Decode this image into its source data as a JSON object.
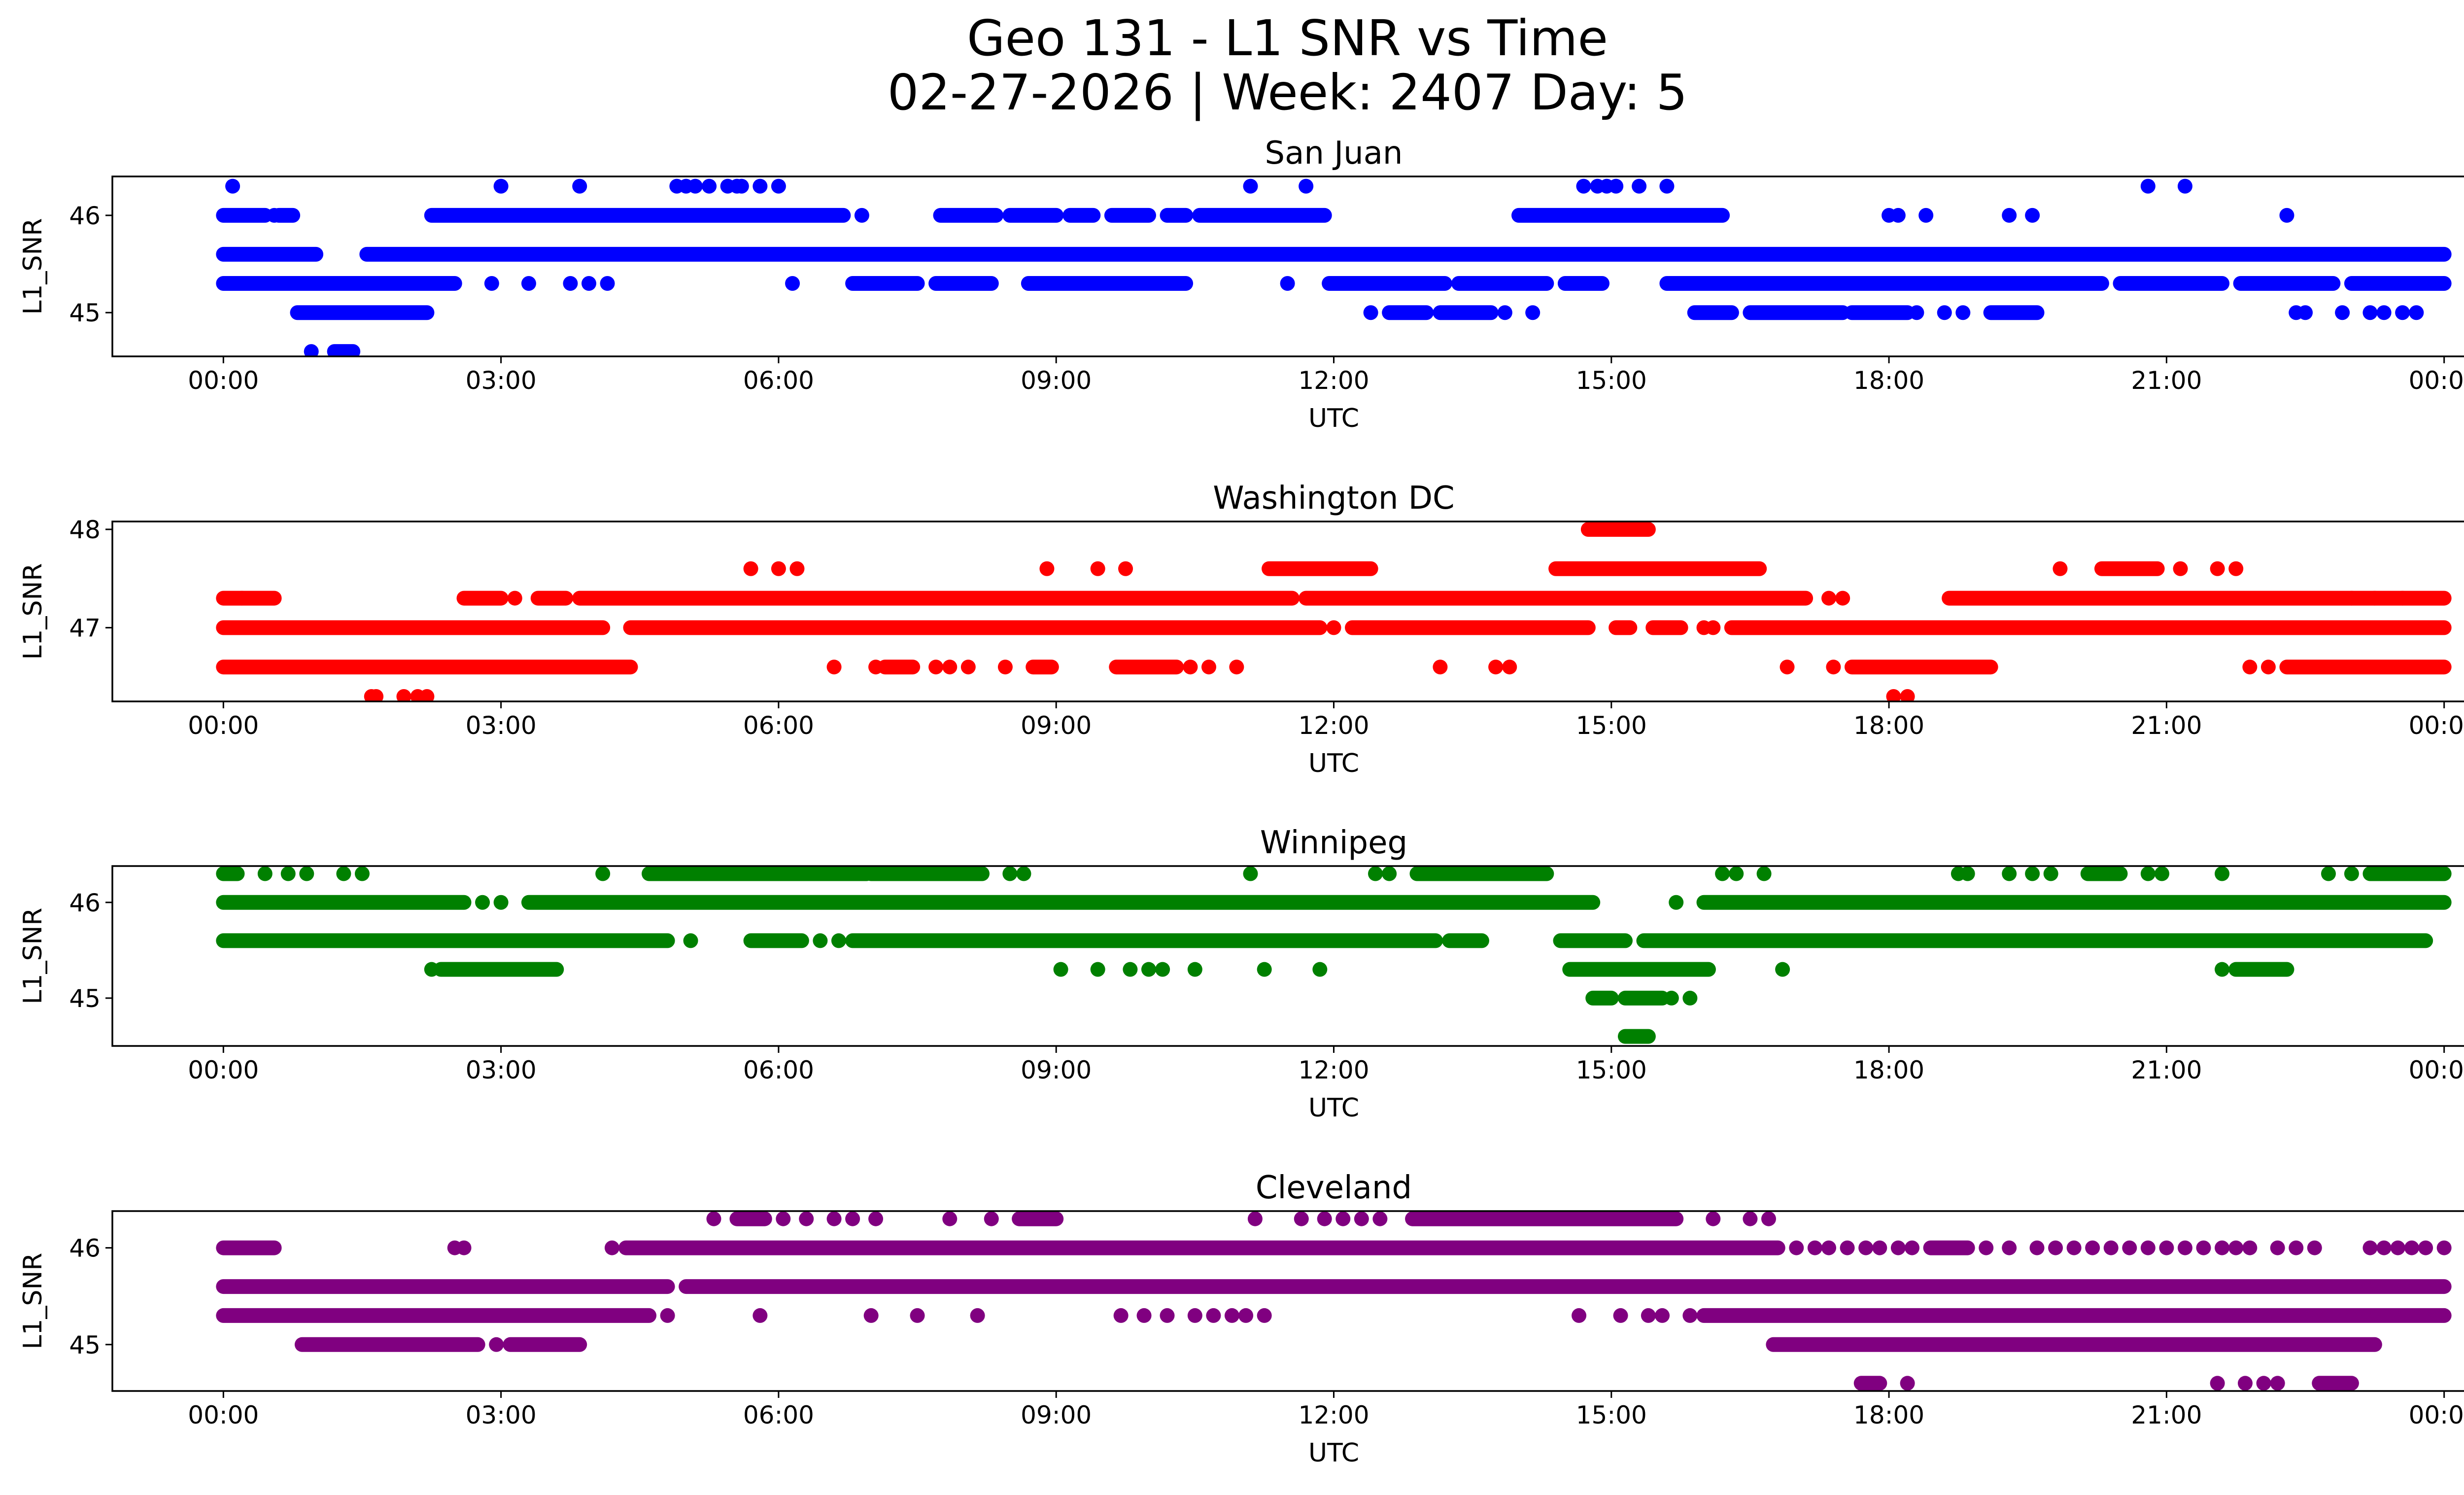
{
  "figure": {
    "title_line1": "Geo 131 - L1 SNR vs Time",
    "title_line2": "02-27-2026 | Week: 2407 Day: 5"
  },
  "chart_data": [
    {
      "type": "scatter",
      "title": "San Juan",
      "xlabel": "UTC",
      "ylabel": "L1_SNR",
      "color": "#0000ff",
      "x_unit": "hours UTC",
      "xlim": [
        -1.2,
        25.2
      ],
      "ylim": [
        44.55,
        46.4
      ],
      "yticks": [
        45,
        46
      ],
      "ytick_labels": [
        "45",
        "46"
      ],
      "xticks": [
        0,
        3,
        6,
        9,
        12,
        15,
        18,
        21,
        24
      ],
      "xtick_labels": [
        "00:00",
        "03:00",
        "06:00",
        "09:00",
        "12:00",
        "15:00",
        "18:00",
        "21:00",
        "00:00"
      ],
      "levels": [
        {
          "y": 46.3,
          "x": [
            0.1,
            3.0,
            3.85,
            4.9,
            5.0,
            5.1,
            5.25,
            5.45,
            5.55,
            5.6,
            5.8,
            6.0,
            11.1,
            11.7,
            14.7,
            14.85,
            14.95,
            15.05,
            15.3,
            15.6,
            20.8,
            21.2
          ]
        },
        {
          "y": 46.0,
          "segments": [
            [
              0,
              0.45
            ],
            [
              0.6,
              0.75
            ],
            [
              2.25,
              6.7
            ],
            [
              7.75,
              8.35
            ],
            [
              8.5,
              9.0
            ],
            [
              9.15,
              9.4
            ],
            [
              9.6,
              10.0
            ],
            [
              10.2,
              10.4
            ],
            [
              10.55,
              11.9
            ],
            [
              14.0,
              16.2
            ]
          ],
          "x": [
            0.55,
            6.9,
            18.0,
            18.1,
            18.4,
            19.3,
            19.55,
            22.3
          ]
        },
        {
          "y": 45.6,
          "segments": [
            [
              0,
              1.0
            ],
            [
              1.55,
              24.0
            ]
          ]
        },
        {
          "y": 45.3,
          "segments": [
            [
              0,
              2.5
            ],
            [
              6.8,
              7.5
            ],
            [
              7.7,
              8.3
            ],
            [
              8.7,
              10.4
            ],
            [
              11.95,
              13.2
            ],
            [
              13.35,
              14.3
            ],
            [
              14.5,
              14.9
            ],
            [
              15.6,
              20.3
            ],
            [
              20.5,
              21.6
            ],
            [
              21.8,
              22.8
            ],
            [
              23.0,
              24.0
            ]
          ],
          "x": [
            2.9,
            3.3,
            3.75,
            3.95,
            4.15,
            6.15,
            11.5
          ]
        },
        {
          "y": 45.0,
          "segments": [
            [
              0.8,
              2.2
            ],
            [
              12.6,
              13.0
            ],
            [
              13.15,
              13.7
            ],
            [
              15.9,
              16.3
            ],
            [
              16.5,
              17.5
            ],
            [
              17.6,
              18.2
            ],
            [
              19.1,
              19.6
            ]
          ],
          "x": [
            12.4,
            13.85,
            14.15,
            18.3,
            18.6,
            18.8,
            22.4,
            22.5,
            22.9,
            23.2,
            23.35,
            23.55,
            23.7
          ]
        },
        {
          "y": 44.6,
          "segments": [
            [
              1.2,
              1.4
            ]
          ],
          "x": [
            0.95
          ]
        }
      ]
    },
    {
      "type": "scatter",
      "title": "Washington DC",
      "xlabel": "UTC",
      "ylabel": "L1_SNR",
      "color": "#ff0000",
      "x_unit": "hours UTC",
      "xlim": [
        -1.2,
        25.2
      ],
      "ylim": [
        46.25,
        48.08
      ],
      "yticks": [
        47,
        48
      ],
      "ytick_labels": [
        "47",
        "48"
      ],
      "xticks": [
        0,
        3,
        6,
        9,
        12,
        15,
        18,
        21,
        24
      ],
      "xtick_labels": [
        "00:00",
        "03:00",
        "06:00",
        "09:00",
        "12:00",
        "15:00",
        "18:00",
        "21:00",
        "00:00"
      ],
      "levels": [
        {
          "y": 48.0,
          "segments": [
            [
              14.75,
              15.4
            ]
          ]
        },
        {
          "y": 47.6,
          "segments": [
            [
              11.3,
              12.4
            ],
            [
              14.4,
              16.6
            ],
            [
              20.3,
              20.9
            ]
          ],
          "x": [
            5.7,
            6.0,
            6.2,
            8.9,
            9.45,
            9.75,
            19.85,
            21.15,
            21.55,
            21.75
          ]
        },
        {
          "y": 47.3,
          "segments": [
            [
              0,
              0.55
            ],
            [
              2.6,
              3.0
            ],
            [
              3.4,
              3.7
            ],
            [
              3.85,
              11.55
            ],
            [
              11.7,
              17.1
            ],
            [
              18.65,
              24.0
            ]
          ],
          "x": [
            0.2,
            3.15,
            17.35,
            17.5,
            23.0,
            23.25,
            23.55
          ]
        },
        {
          "y": 47.0,
          "segments": [
            [
              0,
              4.1
            ],
            [
              4.4,
              11.85
            ],
            [
              12.2,
              14.75
            ],
            [
              15.05,
              15.2
            ],
            [
              15.45,
              15.75
            ],
            [
              16.3,
              24.0
            ]
          ],
          "x": [
            12.0,
            16.0,
            16.1
          ]
        },
        {
          "y": 46.6,
          "segments": [
            [
              0,
              4.4
            ],
            [
              7.15,
              7.45
            ],
            [
              8.75,
              8.95
            ],
            [
              9.65,
              10.3
            ],
            [
              17.6,
              19.1
            ],
            [
              22.3,
              24.0
            ]
          ],
          "x": [
            6.6,
            7.05,
            7.7,
            7.85,
            8.05,
            8.45,
            10.45,
            10.65,
            10.95,
            13.15,
            13.75,
            13.9,
            16.9,
            17.4,
            21.9,
            22.1
          ]
        },
        {
          "y": 46.3,
          "x": [
            1.6,
            1.65,
            1.95,
            2.1,
            2.2,
            18.05,
            18.2
          ]
        }
      ]
    },
    {
      "type": "scatter",
      "title": "Winnipeg",
      "xlabel": "UTC",
      "ylabel": "L1_SNR",
      "color": "#008000",
      "x_unit": "hours UTC",
      "xlim": [
        -1.2,
        25.2
      ],
      "ylim": [
        44.5,
        46.38
      ],
      "yticks": [
        45,
        46
      ],
      "ytick_labels": [
        "45",
        "46"
      ],
      "xticks": [
        0,
        3,
        6,
        9,
        12,
        15,
        18,
        21,
        24
      ],
      "xtick_labels": [
        "00:00",
        "03:00",
        "06:00",
        "09:00",
        "12:00",
        "15:00",
        "18:00",
        "21:00",
        "00:00"
      ],
      "levels": [
        {
          "y": 46.3,
          "segments": [
            [
              0,
              0.15
            ],
            [
              4.6,
              6.95
            ],
            [
              7.0,
              8.2
            ],
            [
              12.9,
              14.3
            ],
            [
              20.15,
              20.5
            ],
            [
              23.2,
              24.0
            ]
          ],
          "x": [
            0.45,
            0.7,
            0.9,
            1.3,
            1.5,
            4.1,
            8.5,
            8.65,
            11.1,
            12.45,
            12.6,
            16.2,
            16.35,
            16.65,
            18.75,
            18.85,
            19.3,
            19.55,
            19.75,
            20.8,
            20.95,
            21.6,
            22.75,
            23.0
          ]
        },
        {
          "y": 46.0,
          "segments": [
            [
              0,
              2.6
            ],
            [
              3.3,
              14.8
            ],
            [
              16.0,
              24.0
            ]
          ],
          "x": [
            2.8,
            3.0,
            15.7
          ]
        },
        {
          "y": 45.6,
          "segments": [
            [
              0,
              4.8
            ],
            [
              5.7,
              6.25
            ],
            [
              6.8,
              13.1
            ],
            [
              13.25,
              13.6
            ],
            [
              14.45,
              15.15
            ],
            [
              15.35,
              23.8
            ]
          ],
          "x": [
            5.05,
            6.45,
            6.65
          ]
        },
        {
          "y": 45.3,
          "segments": [
            [
              2.35,
              3.6
            ],
            [
              14.55,
              16.05
            ],
            [
              21.75,
              22.3
            ]
          ],
          "x": [
            2.25,
            9.05,
            9.45,
            9.8,
            10.0,
            10.15,
            10.5,
            11.25,
            11.85,
            16.85,
            21.6
          ]
        },
        {
          "y": 45.0,
          "segments": [
            [
              14.8,
              15.0
            ],
            [
              15.15,
              15.55
            ]
          ],
          "x": [
            15.65,
            15.85
          ]
        },
        {
          "y": 44.6,
          "segments": [
            [
              15.15,
              15.4
            ]
          ]
        }
      ]
    },
    {
      "type": "scatter",
      "title": "Cleveland",
      "xlabel": "UTC",
      "ylabel": "L1_SNR",
      "color": "#800080",
      "x_unit": "hours UTC",
      "xlim": [
        -1.2,
        25.2
      ],
      "ylim": [
        44.52,
        46.38
      ],
      "yticks": [
        45,
        46
      ],
      "ytick_labels": [
        "45",
        "46"
      ],
      "xticks": [
        0,
        3,
        6,
        9,
        12,
        15,
        18,
        21,
        24
      ],
      "xtick_labels": [
        "00:00",
        "03:00",
        "06:00",
        "09:00",
        "12:00",
        "15:00",
        "18:00",
        "21:00",
        "00:00"
      ],
      "levels": [
        {
          "y": 46.3,
          "segments": [
            [
              5.55,
              5.85
            ],
            [
              8.6,
              9.0
            ],
            [
              12.85,
              15.7
            ]
          ],
          "x": [
            5.3,
            6.05,
            6.3,
            6.6,
            6.8,
            7.05,
            7.85,
            8.3,
            11.15,
            11.65,
            11.9,
            12.1,
            12.3,
            12.5,
            16.1,
            16.5,
            16.7
          ]
        },
        {
          "y": 46.0,
          "segments": [
            [
              0,
              0.55
            ],
            [
              4.35,
              16.8
            ],
            [
              18.45,
              18.85
            ]
          ],
          "x": [
            2.5,
            2.6,
            4.2,
            17.0,
            17.2,
            17.35,
            17.55,
            17.75,
            17.9,
            18.1,
            18.25,
            19.05,
            19.3,
            19.6,
            19.8,
            20.0,
            20.2,
            20.4,
            20.6,
            20.8,
            21.0,
            21.2,
            21.4,
            21.6,
            21.75,
            21.9,
            22.2,
            22.4,
            22.6,
            23.2,
            23.35,
            23.5,
            23.65,
            23.8,
            24.0
          ]
        },
        {
          "y": 45.6,
          "segments": [
            [
              0,
              4.8
            ],
            [
              5.0,
              24.0
            ]
          ]
        },
        {
          "y": 45.3,
          "segments": [
            [
              0,
              4.6
            ],
            [
              16.0,
              24.0
            ]
          ],
          "x": [
            4.8,
            5.8,
            7.0,
            7.5,
            8.15,
            9.7,
            9.95,
            10.2,
            10.5,
            10.7,
            10.9,
            11.05,
            11.25,
            14.65,
            15.1,
            15.4,
            15.55,
            15.85
          ]
        },
        {
          "y": 45.0,
          "segments": [
            [
              0.85,
              2.75
            ],
            [
              3.1,
              3.85
            ],
            [
              16.75,
              23.25
            ]
          ],
          "x": [
            2.95
          ]
        },
        {
          "y": 44.6,
          "segments": [
            [
              17.7,
              17.9
            ],
            [
              22.65,
              23.0
            ]
          ],
          "x": [
            18.2,
            21.55,
            21.85,
            22.05,
            22.2
          ]
        }
      ]
    }
  ]
}
